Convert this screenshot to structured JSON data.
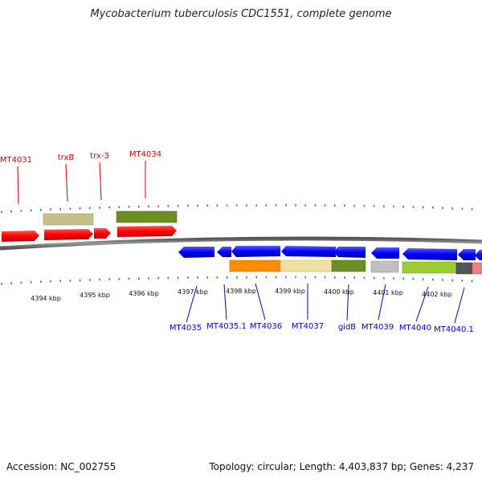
{
  "title": "Mycobacterium tuberculosis CDC1551, complete genome",
  "footer": {
    "accession": "Accession: NC_002755",
    "topology": "Topology: circular; Length: 4,403,837 bp; Genes: 4,237"
  },
  "map": {
    "kbp_labels": [
      "4394 kbp",
      "4395 kbp",
      "4396 kbp",
      "4397 kbp",
      "4398 kbp",
      "4399 kbp",
      "4400 kbp",
      "4401 kbp",
      "4402 kbp"
    ],
    "forward_labels": [
      "MT4031",
      "trxB",
      "trx-3",
      "MT4034"
    ],
    "reverse_labels": [
      "MT4035",
      "MT4035.1",
      "MT4036",
      "MT4037",
      "gidB",
      "MT4039",
      "MT4040",
      "MT4040.1"
    ],
    "colors": {
      "forward_gene": "#ff0000",
      "reverse_gene": "#0000ff",
      "tick": "#2f8a2f",
      "backbone": "#777777",
      "forward_label": "#cc0000",
      "reverse_label": "#0000cc",
      "cog_khaki": "#c8c08a",
      "cog_olive": "#6b8e23",
      "cog_orange": "#ff8c00",
      "cog_wheat": "#eee0a0",
      "cog_grey": "#c0c0c0",
      "cog_lime": "#9acd32",
      "cog_darkgrey": "#555555",
      "cog_pink": "#f08080"
    }
  }
}
